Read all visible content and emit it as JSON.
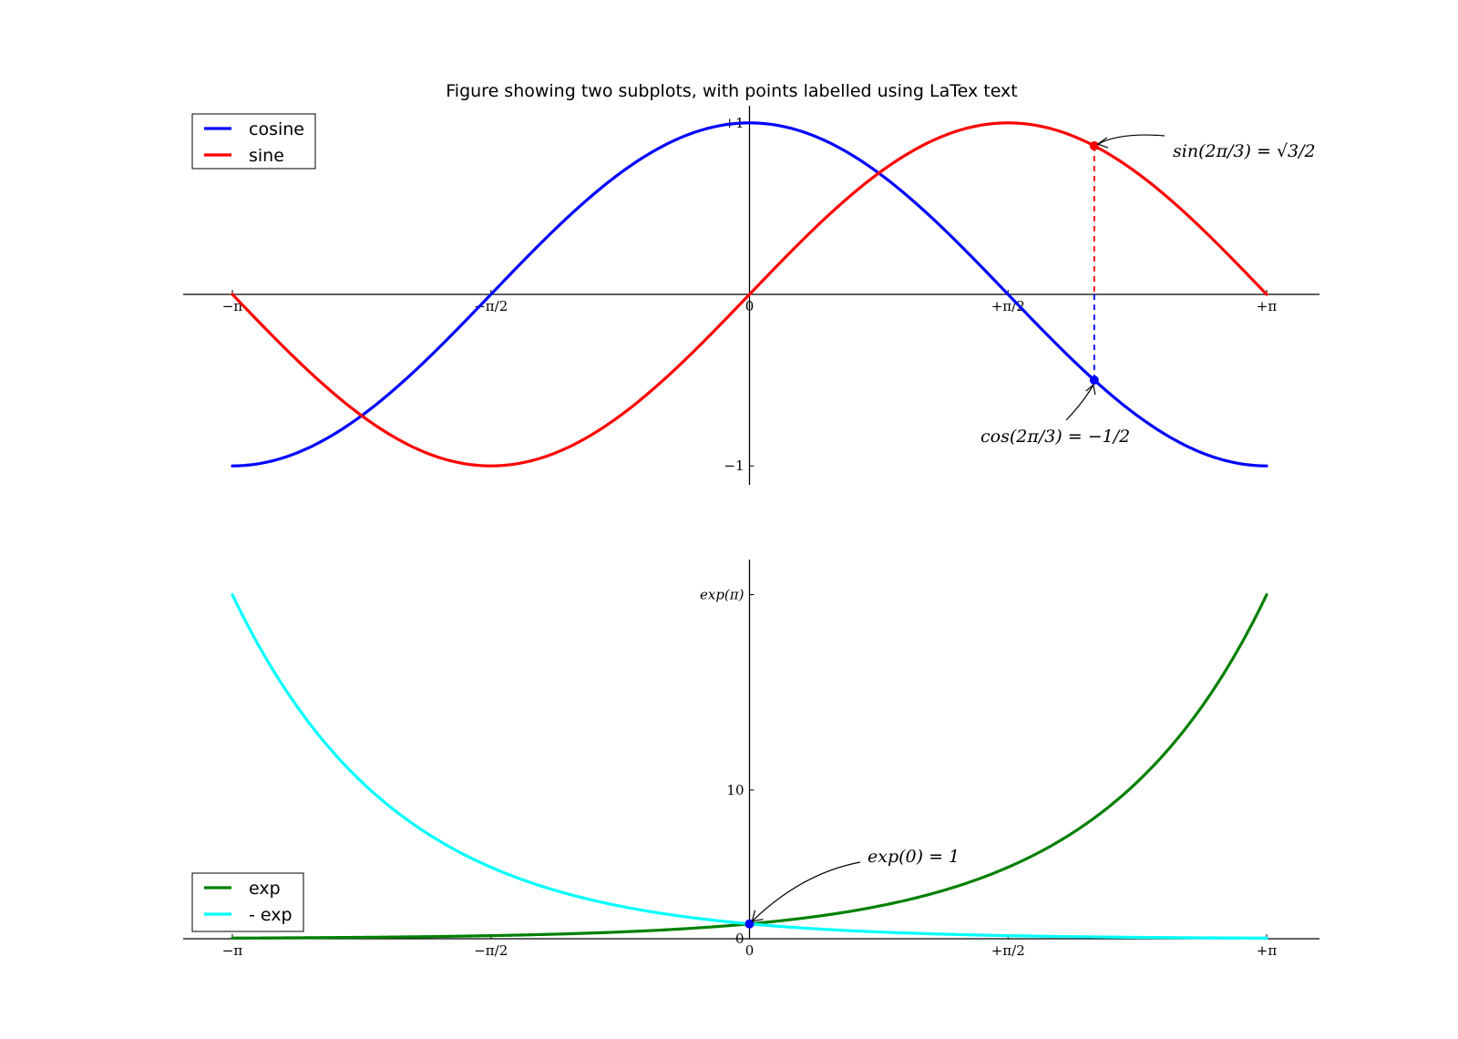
{
  "chart_data": [
    {
      "type": "line",
      "title": "Figure showing two subplots, with points labelled using LaTex text",
      "xlim": [
        -3.14159,
        3.14159
      ],
      "ylim": [
        -1.1,
        1.1
      ],
      "xticks": [
        {
          "value": -3.14159,
          "label": "−π"
        },
        {
          "value": -1.5708,
          "label": "−π/2"
        },
        {
          "value": 0,
          "label": "0"
        },
        {
          "value": 1.5708,
          "label": "+π/2"
        },
        {
          "value": 3.14159,
          "label": "+π"
        }
      ],
      "yticks": [
        {
          "value": -1,
          "label": "−1"
        },
        {
          "value": 1,
          "label": "+1"
        }
      ],
      "series": [
        {
          "name": "cosine",
          "function": "cos",
          "color": "#0000ff"
        },
        {
          "name": "sine",
          "function": "sin",
          "color": "#ff0000"
        }
      ],
      "legend": "upper-left",
      "annotations": [
        {
          "x": 2.0944,
          "y": 0.866,
          "text": "sin(2π/3) = √3/2",
          "color": "#ff0000"
        },
        {
          "x": 2.0944,
          "y": -0.5,
          "text": "cos(2π/3) = −1/2",
          "color": "#0000ff"
        }
      ]
    },
    {
      "type": "line",
      "xlim": [
        -3.14159,
        3.14159
      ],
      "ylim": [
        0,
        25.5
      ],
      "xticks": [
        {
          "value": -3.14159,
          "label": "−π"
        },
        {
          "value": -1.5708,
          "label": "−π/2"
        },
        {
          "value": 0,
          "label": "0"
        },
        {
          "value": 1.5708,
          "label": "+π/2"
        },
        {
          "value": 3.14159,
          "label": "+π"
        }
      ],
      "yticks": [
        {
          "value": 0,
          "label": "0"
        },
        {
          "value": 10,
          "label": "10"
        },
        {
          "value": 23.1407,
          "label": "exp(π)"
        }
      ],
      "series": [
        {
          "name": "exp",
          "function": "exp",
          "color": "#008000"
        },
        {
          "name": "- exp",
          "function": "negexp",
          "color": "#00ffff"
        }
      ],
      "legend": "lower-left",
      "annotations": [
        {
          "x": 0,
          "y": 1,
          "text": "exp(0) = 1",
          "color": "#0000ff"
        }
      ]
    }
  ]
}
